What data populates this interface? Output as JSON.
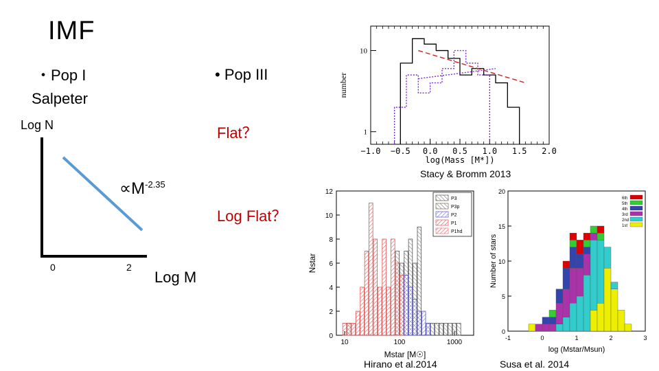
{
  "slide": {
    "title": "IMF",
    "pop1_label": "・Pop I",
    "pop1_sub": "Salpeter",
    "pop3_label": "• Pop III",
    "flat_label": "Flat？",
    "logflat_label": "Log Flat？",
    "logn_label": "Log N",
    "logm_label": "Log M",
    "prop_base": "∝M",
    "prop_exp": "-2.35",
    "tick_0": "0",
    "tick_2": "2"
  },
  "captions": {
    "stacy": "Stacy & Bromm 2013",
    "hirano": "Hirano et al.2014",
    "susa": "Susa et al. 2014"
  },
  "chart_data": [
    {
      "type": "line",
      "title": "",
      "xlabel": "Log M",
      "ylabel": "Log N",
      "x": [
        0.2,
        1.8
      ],
      "series": [
        {
          "values": [
            2.0,
            0.6
          ]
        }
      ],
      "annotation": "∝M^-2.35"
    },
    {
      "type": "line",
      "title": "",
      "xlabel": "log(Mass [M*])",
      "ylabel": "number",
      "yscale": "log",
      "x_ticks": [
        "−1.0",
        "−0.5",
        "0.0",
        "0.5",
        "1.0",
        "1.5",
        "2.0"
      ],
      "y_ticks": [
        "10",
        "1"
      ],
      "xlim": [
        -1.0,
        2.0
      ],
      "ylim": [
        0.7,
        20
      ],
      "step_series": [
        {
          "style": "black-solid",
          "edges": [
            -0.5,
            -0.3,
            -0.1,
            0.1,
            0.3,
            0.5,
            0.7,
            0.9,
            1.1,
            1.3,
            1.5
          ],
          "values": [
            7,
            14,
            12,
            10,
            8,
            5,
            6,
            5,
            4,
            2
          ]
        },
        {
          "style": "purple-dotted",
          "edges": [
            -0.6,
            -0.4,
            -0.2,
            0.0,
            0.2,
            0.4,
            0.6,
            0.8,
            1.0
          ],
          "values": [
            2,
            5,
            3,
            4,
            6,
            10,
            7,
            5
          ]
        }
      ],
      "fit_lines": [
        {
          "style": "red-dashed",
          "x": [
            -0.2,
            1.6
          ],
          "y": [
            10,
            4
          ]
        },
        {
          "style": "purple-dotted",
          "x": [
            -0.2,
            1.1
          ],
          "y": [
            4.5,
            6
          ]
        }
      ]
    },
    {
      "type": "bar",
      "title": "",
      "xlabel": "Mstar [M☉]",
      "ylabel": "Nstar",
      "xscale": "log",
      "x_ticks": [
        "10",
        "100",
        "1000"
      ],
      "y_ticks": [
        "0",
        "2",
        "4",
        "6",
        "8",
        "10",
        "12"
      ],
      "ylim": [
        0,
        12
      ],
      "legend": "top-right",
      "series": [
        {
          "name": "P3",
          "color": "#555555"
        },
        {
          "name": "P3p",
          "color": "#7a6a50"
        },
        {
          "name": "P2",
          "color": "#5555dd"
        },
        {
          "name": "P1",
          "color": "#ee5555"
        },
        {
          "name": "P1hd",
          "color": "#ee7777"
        }
      ],
      "bins": [
        {
          "logm": 1.0,
          "P1": 1
        },
        {
          "logm": 1.08,
          "P1": 1,
          "P3": 1
        },
        {
          "logm": 1.16,
          "P1": 1
        },
        {
          "logm": 1.24,
          "P1": 2
        },
        {
          "logm": 1.32,
          "P1": 4
        },
        {
          "logm": 1.4,
          "P1": 7
        },
        {
          "logm": 1.48,
          "P1": 11
        },
        {
          "logm": 1.56,
          "P1": 8
        },
        {
          "logm": 1.64,
          "P1": 4
        },
        {
          "logm": 1.72,
          "P1": 8
        },
        {
          "logm": 1.8,
          "P1": 4
        },
        {
          "logm": 1.88,
          "P1": 8
        },
        {
          "logm": 1.96,
          "P1": 6,
          "P3": 7
        },
        {
          "logm": 2.04,
          "P1": 5,
          "P3": 6
        },
        {
          "logm": 2.12,
          "P2": 5,
          "P3": 7
        },
        {
          "logm": 2.2,
          "P2": 4,
          "P3": 8
        },
        {
          "logm": 2.28,
          "P2": 3,
          "P3": 6
        },
        {
          "logm": 2.36,
          "P2": 2,
          "P3": 9
        },
        {
          "logm": 2.44,
          "P2": 2
        },
        {
          "logm": 2.52,
          "P2": 1,
          "P3": 1
        },
        {
          "logm": 2.6,
          "P3": 1
        },
        {
          "logm": 2.68,
          "P3": 1
        },
        {
          "logm": 2.76,
          "P3": 1
        },
        {
          "logm": 2.84,
          "P3": 1
        },
        {
          "logm": 2.92,
          "P3": 1
        },
        {
          "logm": 3.0,
          "P3": 1
        },
        {
          "logm": 3.08,
          "P3": 1
        }
      ]
    },
    {
      "type": "bar",
      "title": "",
      "xlabel": "log (Mstar/Msun)",
      "ylabel": "Number of stars",
      "stacked": true,
      "x_ticks": [
        "-1",
        "0",
        "1",
        "2",
        "3"
      ],
      "y_ticks": [
        "0",
        "5",
        "10",
        "15",
        "20"
      ],
      "xlim": [
        -1,
        3
      ],
      "ylim": [
        0,
        20
      ],
      "legend": "top-right",
      "series_names": [
        "6th",
        "5th",
        "4th",
        "3rd",
        "2nd",
        "1st"
      ],
      "series_colors": [
        "#dd0000",
        "#33cc33",
        "#3344aa",
        "#aa33aa",
        "#33cccc",
        "#eeee00"
      ],
      "bins_logm": [
        -0.3,
        -0.1,
        0.1,
        0.3,
        0.5,
        0.7,
        0.9,
        1.1,
        1.3,
        1.5,
        1.7,
        1.9,
        2.1,
        2.3,
        2.5
      ],
      "stacks": [
        [
          0,
          0,
          0,
          0,
          0,
          1
        ],
        [
          0,
          0,
          0,
          1,
          0,
          0
        ],
        [
          0,
          0,
          1,
          1,
          0,
          0
        ],
        [
          0,
          1,
          1,
          1,
          0,
          0
        ],
        [
          0,
          0,
          2,
          3,
          1,
          0
        ],
        [
          1,
          0,
          3,
          4,
          2,
          0
        ],
        [
          1,
          1,
          3,
          5,
          4,
          0
        ],
        [
          2,
          0,
          2,
          4,
          5,
          0
        ],
        [
          1,
          1,
          1,
          3,
          8,
          0
        ],
        [
          0,
          1,
          0,
          1,
          10,
          3
        ],
        [
          1,
          1,
          0,
          0,
          9,
          4
        ],
        [
          0,
          0,
          0,
          0,
          3,
          9
        ],
        [
          0,
          0,
          0,
          0,
          1,
          6
        ],
        [
          0,
          0,
          0,
          0,
          0,
          3
        ],
        [
          0,
          0,
          0,
          0,
          0,
          1
        ]
      ]
    }
  ]
}
